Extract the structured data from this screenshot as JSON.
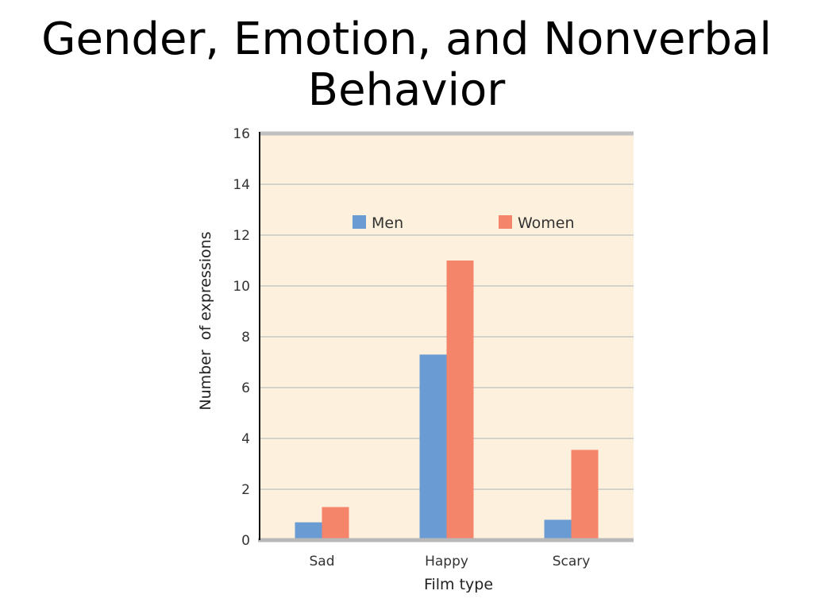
{
  "slide": {
    "title_line1": "Gender, Emotion, and Nonverbal",
    "title_line2": "Behavior"
  },
  "chart_data": {
    "type": "bar",
    "categories": [
      "Sad",
      "Happy",
      "Scary"
    ],
    "series": [
      {
        "name": "Men",
        "values": [
          0.7,
          7.3,
          0.8
        ],
        "color": "#6a9bd3"
      },
      {
        "name": "Women",
        "values": [
          1.3,
          11.0,
          3.55
        ],
        "color": "#f5856a"
      }
    ],
    "title": "",
    "xlabel": "Film type",
    "ylabel": "Number  of expressions",
    "ylim": [
      0,
      16
    ],
    "yticks": [
      0,
      2,
      4,
      6,
      8,
      10,
      12,
      14,
      16
    ],
    "grid": true,
    "legend_position": "top",
    "plot_background": "#fdf0dc",
    "gridline_color": "#c8c8c8"
  }
}
